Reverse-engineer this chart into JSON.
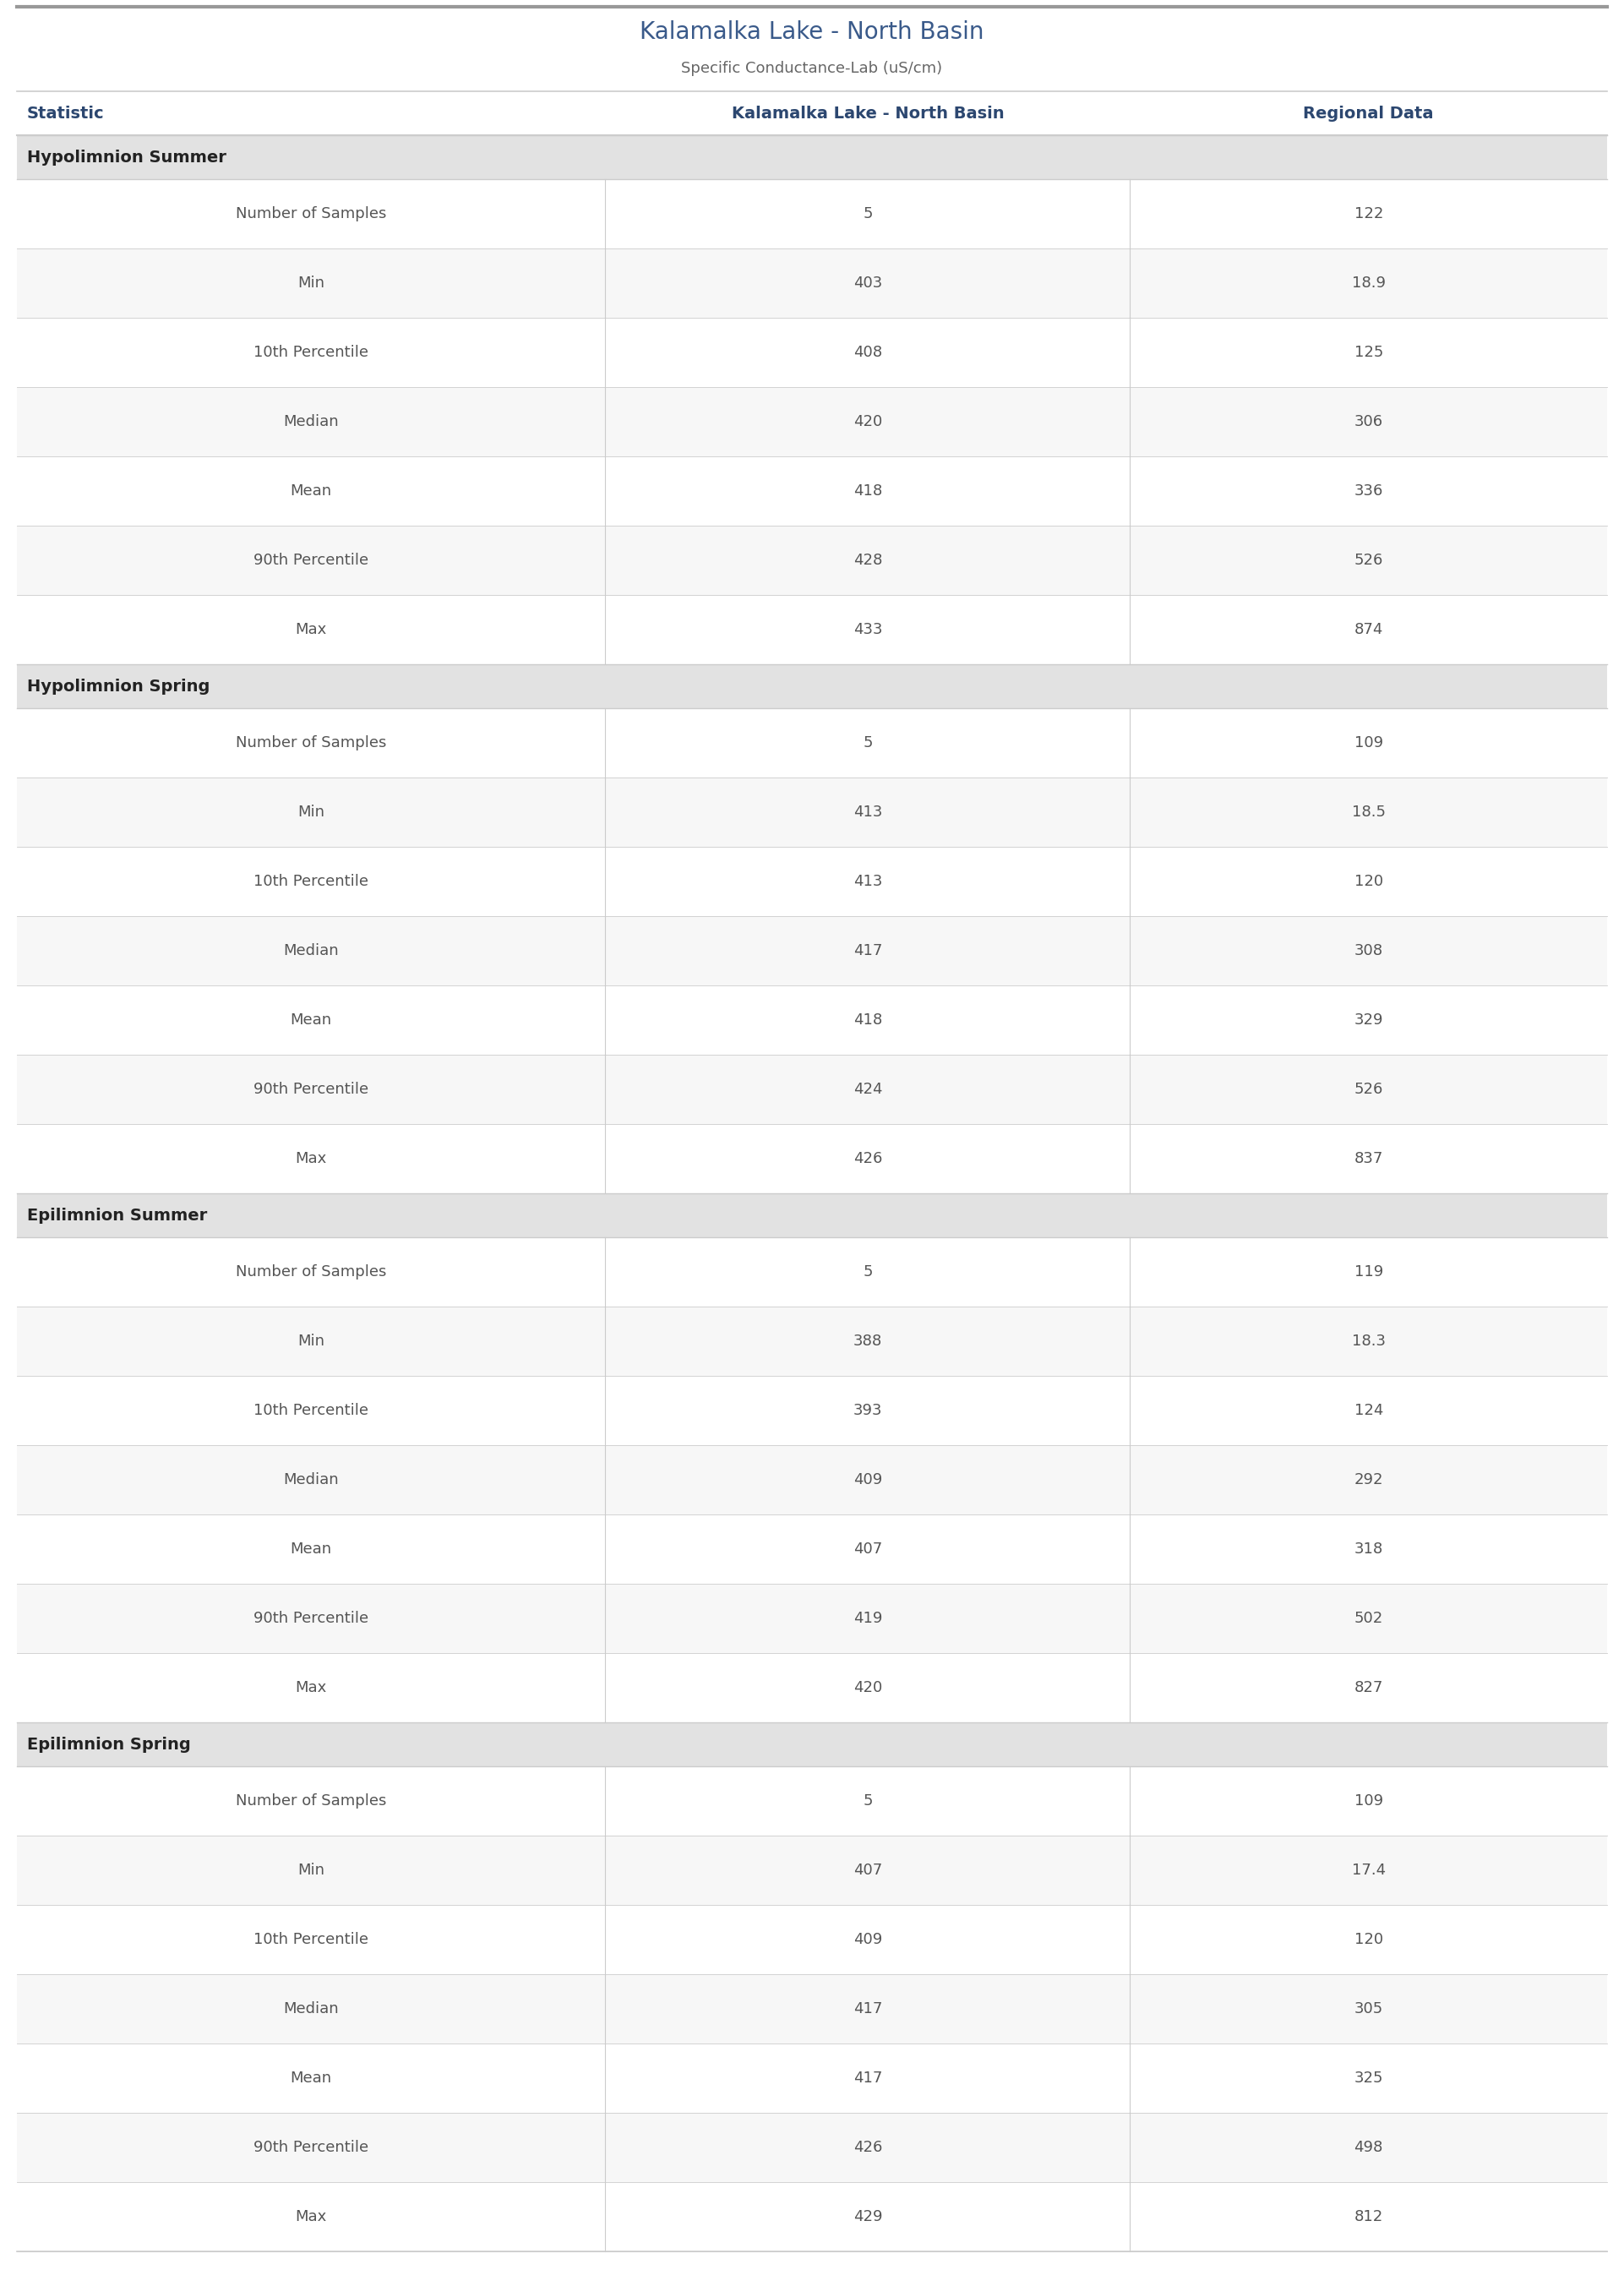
{
  "title": "Kalamalka Lake - North Basin",
  "subtitle": "Specific Conductance-Lab (uS/cm)",
  "col_headers": [
    "Statistic",
    "Kalamalka Lake - North Basin",
    "Regional Data"
  ],
  "sections": [
    {
      "name": "Hypolimnion Summer",
      "rows": [
        [
          "Number of Samples",
          "5",
          "122"
        ],
        [
          "Min",
          "403",
          "18.9"
        ],
        [
          "10th Percentile",
          "408",
          "125"
        ],
        [
          "Median",
          "420",
          "306"
        ],
        [
          "Mean",
          "418",
          "336"
        ],
        [
          "90th Percentile",
          "428",
          "526"
        ],
        [
          "Max",
          "433",
          "874"
        ]
      ]
    },
    {
      "name": "Hypolimnion Spring",
      "rows": [
        [
          "Number of Samples",
          "5",
          "109"
        ],
        [
          "Min",
          "413",
          "18.5"
        ],
        [
          "10th Percentile",
          "413",
          "120"
        ],
        [
          "Median",
          "417",
          "308"
        ],
        [
          "Mean",
          "418",
          "329"
        ],
        [
          "90th Percentile",
          "424",
          "526"
        ],
        [
          "Max",
          "426",
          "837"
        ]
      ]
    },
    {
      "name": "Epilimnion Summer",
      "rows": [
        [
          "Number of Samples",
          "5",
          "119"
        ],
        [
          "Min",
          "388",
          "18.3"
        ],
        [
          "10th Percentile",
          "393",
          "124"
        ],
        [
          "Median",
          "409",
          "292"
        ],
        [
          "Mean",
          "407",
          "318"
        ],
        [
          "90th Percentile",
          "419",
          "502"
        ],
        [
          "Max",
          "420",
          "827"
        ]
      ]
    },
    {
      "name": "Epilimnion Spring",
      "rows": [
        [
          "Number of Samples",
          "5",
          "109"
        ],
        [
          "Min",
          "407",
          "17.4"
        ],
        [
          "10th Percentile",
          "409",
          "120"
        ],
        [
          "Median",
          "417",
          "305"
        ],
        [
          "Mean",
          "417",
          "325"
        ],
        [
          "90th Percentile",
          "426",
          "498"
        ],
        [
          "Max",
          "429",
          "812"
        ]
      ]
    }
  ],
  "bg_color": "#ffffff",
  "section_bg": "#e2e2e2",
  "row_bg_white": "#ffffff",
  "row_bg_light": "#f7f7f7",
  "title_color": "#3a5a8a",
  "subtitle_color": "#666666",
  "col_header_color": "#2c4770",
  "section_text_color": "#222222",
  "stat_label_color": "#555555",
  "data_col1_color": "#555555",
  "data_col2_color": "#555555",
  "border_color": "#cccccc",
  "top_border_color": "#999999",
  "title_fontsize": 20,
  "subtitle_fontsize": 13,
  "col_header_fontsize": 14,
  "section_fontsize": 14,
  "data_fontsize": 13
}
